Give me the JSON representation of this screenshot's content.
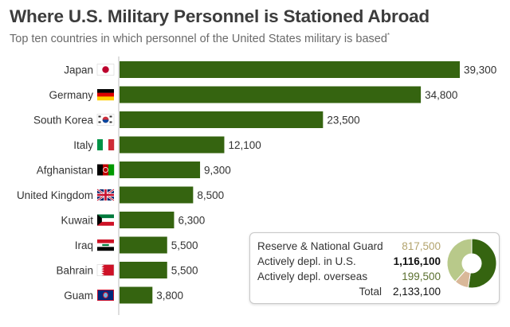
{
  "header": {
    "title": "Where U.S. Military Personnel is Stationed Abroad",
    "subtitle": "Top ten countries in which personnel of the United States military is based",
    "subtitle_mark": "*"
  },
  "colors": {
    "bar": "#356410",
    "axis": "#bdbdbd",
    "reserve": "#b8c98a",
    "us": "#356410",
    "overseas": "#d9b899"
  },
  "chart_data": {
    "type": "bar",
    "orientation": "horizontal",
    "categories": [
      "Japan",
      "Germany",
      "South Korea",
      "Italy",
      "Afghanistan",
      "United Kingdom",
      "Kuwait",
      "Iraq",
      "Bahrain",
      "Guam"
    ],
    "flag_icons": [
      "flag-japan-icon",
      "flag-germany-icon",
      "flag-south-korea-icon",
      "flag-italy-icon",
      "flag-afghanistan-icon",
      "flag-uk-icon",
      "flag-kuwait-icon",
      "flag-iraq-icon",
      "flag-bahrain-icon",
      "flag-guam-icon"
    ],
    "values": [
      39300,
      34800,
      23500,
      12100,
      9300,
      8500,
      6300,
      5500,
      5500,
      3800
    ],
    "value_labels": [
      "39,300",
      "34,800",
      "23,500",
      "12,100",
      "9,300",
      "8,500",
      "6,300",
      "5,500",
      "5,500",
      "3,800"
    ],
    "xlim": [
      0,
      39300
    ],
    "title": "Where U.S. Military Personnel is Stationed Abroad",
    "xlabel": "",
    "ylabel": "",
    "grid": false
  },
  "summary": {
    "rows": [
      {
        "label": "Reserve & National Guard",
        "value": "817,500",
        "amount": 817500
      },
      {
        "label": "Actively depl. in U.S.",
        "value": "1,116,100",
        "amount": 1116100
      },
      {
        "label": "Actively depl. overseas",
        "value": "199,500",
        "amount": 199500
      }
    ],
    "total_label": "Total",
    "total_value": "2,133,100",
    "total_amount": 2133100
  }
}
